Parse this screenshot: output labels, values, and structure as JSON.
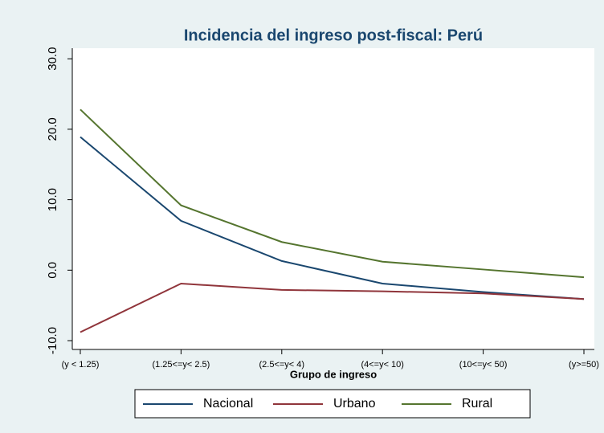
{
  "chart_data": {
    "type": "line",
    "title": "Incidencia del ingreso post-fiscal: Perú",
    "x_label": "Grupo de ingreso",
    "categories": [
      "(y < 1.25)",
      "(1.25<=y< 2.5)",
      "(2.5<=y< 4)",
      "(4<=y< 10)",
      "(10<=y< 50)",
      "(y>=50)"
    ],
    "series": [
      {
        "name": "Nacional",
        "color": "#1a476f",
        "values": [
          18.9,
          7.0,
          1.3,
          -1.9,
          -3.1,
          -4.1
        ]
      },
      {
        "name": "Urbano",
        "color": "#90353b",
        "values": [
          -8.8,
          -1.9,
          -2.8,
          -3.0,
          -3.3,
          -4.1
        ]
      },
      {
        "name": "Rural",
        "color": "#55752f",
        "values": [
          22.8,
          9.2,
          4.0,
          1.2,
          0.1,
          -1.0
        ]
      }
    ],
    "ylim": [
      -11.25,
      31.5
    ],
    "yticks": [
      {
        "value": -10,
        "label": "-10.0"
      },
      {
        "value": 0,
        "label": "0.0"
      },
      {
        "value": 10,
        "label": "10.0"
      },
      {
        "value": 20,
        "label": "20.0"
      },
      {
        "value": 30,
        "label": "30.0"
      }
    ],
    "legend": "bottom"
  }
}
